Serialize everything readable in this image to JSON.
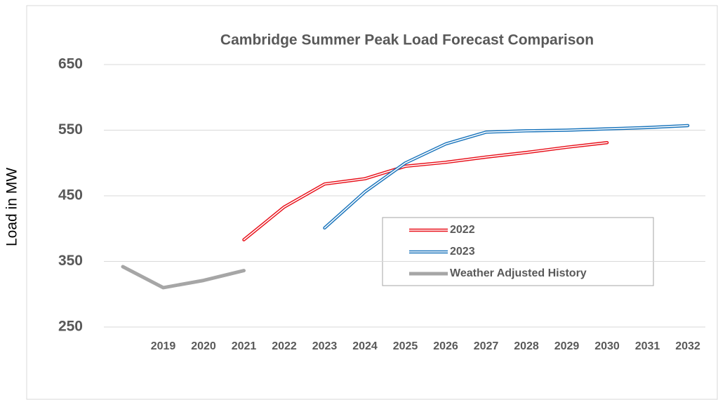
{
  "chart_data": {
    "type": "line",
    "title": "Cambridge Summer Peak Load Forecast Comparison",
    "y_label": "Load in MW",
    "categories": [
      null,
      "2019",
      "2020",
      "2021",
      "2022",
      "2023",
      "2024",
      "2025",
      "2026",
      "2027",
      "2028",
      "2029",
      "2030",
      "2031",
      "2032"
    ],
    "series": [
      {
        "name": "2022",
        "color": "#e8101a",
        "style": "double",
        "values": [
          null,
          null,
          null,
          383,
          433,
          468,
          476,
          495,
          501,
          509,
          516,
          524,
          531,
          null,
          null
        ]
      },
      {
        "name": "2023",
        "color": "#1b75bc",
        "style": "double",
        "values": [
          null,
          null,
          null,
          null,
          null,
          401,
          456,
          500,
          529,
          547,
          549,
          550,
          552,
          554,
          557
        ]
      },
      {
        "name": "Weather Adjusted History",
        "color": "#a6a6a6",
        "style": "solid",
        "values": [
          342,
          310,
          321,
          336,
          null,
          null,
          null,
          null,
          null,
          null,
          null,
          null,
          null,
          null,
          null
        ]
      }
    ],
    "ylim": [
      250,
      650
    ],
    "yticks": [
      250,
      350,
      450,
      550,
      650
    ],
    "grid": true,
    "legend": "center-right"
  }
}
